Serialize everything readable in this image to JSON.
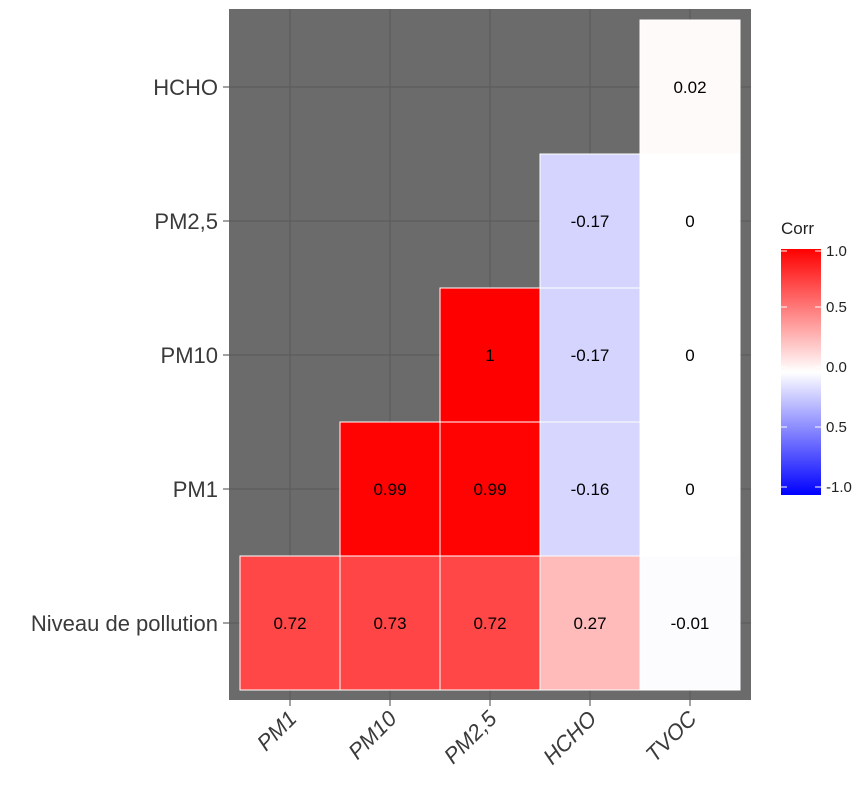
{
  "chart_data": {
    "type": "heatmap",
    "x_categories": [
      "PM1",
      "PM10",
      "PM2,5",
      "HCHO",
      "TVOC"
    ],
    "y_categories": [
      "HCHO",
      "PM2,5",
      "PM10",
      "PM1",
      "Niveau de pollution"
    ],
    "cells": [
      {
        "row": "HCHO",
        "col": "TVOC",
        "value": 0.02,
        "label": "0.02"
      },
      {
        "row": "PM2,5",
        "col": "HCHO",
        "value": -0.17,
        "label": "-0.17"
      },
      {
        "row": "PM2,5",
        "col": "TVOC",
        "value": 0,
        "label": "0"
      },
      {
        "row": "PM10",
        "col": "PM2,5",
        "value": 1,
        "label": "1"
      },
      {
        "row": "PM10",
        "col": "HCHO",
        "value": -0.17,
        "label": "-0.17"
      },
      {
        "row": "PM10",
        "col": "TVOC",
        "value": 0,
        "label": "0"
      },
      {
        "row": "PM1",
        "col": "PM10",
        "value": 0.99,
        "label": "0.99"
      },
      {
        "row": "PM1",
        "col": "PM2,5",
        "value": 0.99,
        "label": "0.99"
      },
      {
        "row": "PM1",
        "col": "HCHO",
        "value": -0.16,
        "label": "-0.16"
      },
      {
        "row": "PM1",
        "col": "TVOC",
        "value": 0,
        "label": "0"
      },
      {
        "row": "Niveau de pollution",
        "col": "PM1",
        "value": 0.72,
        "label": "0.72"
      },
      {
        "row": "Niveau de pollution",
        "col": "PM10",
        "value": 0.73,
        "label": "0.73"
      },
      {
        "row": "Niveau de pollution",
        "col": "PM2,5",
        "value": 0.72,
        "label": "0.72"
      },
      {
        "row": "Niveau de pollution",
        "col": "HCHO",
        "value": 0.27,
        "label": "0.27"
      },
      {
        "row": "Niveau de pollution",
        "col": "TVOC",
        "value": -0.01,
        "label": "-0.01"
      }
    ],
    "legend": {
      "title": "Corr",
      "ticks": [
        "1.0",
        "0.5",
        "0.0",
        "0.5",
        "-1.0"
      ],
      "range": [
        -1,
        1
      ]
    },
    "colors": {
      "low": "#0000ff",
      "mid": "#ffffff",
      "high": "#ff0000",
      "panel_background": "#6b6b6b",
      "grid_line": "#5a5a5a"
    },
    "grid": true,
    "legend_position": "right"
  }
}
